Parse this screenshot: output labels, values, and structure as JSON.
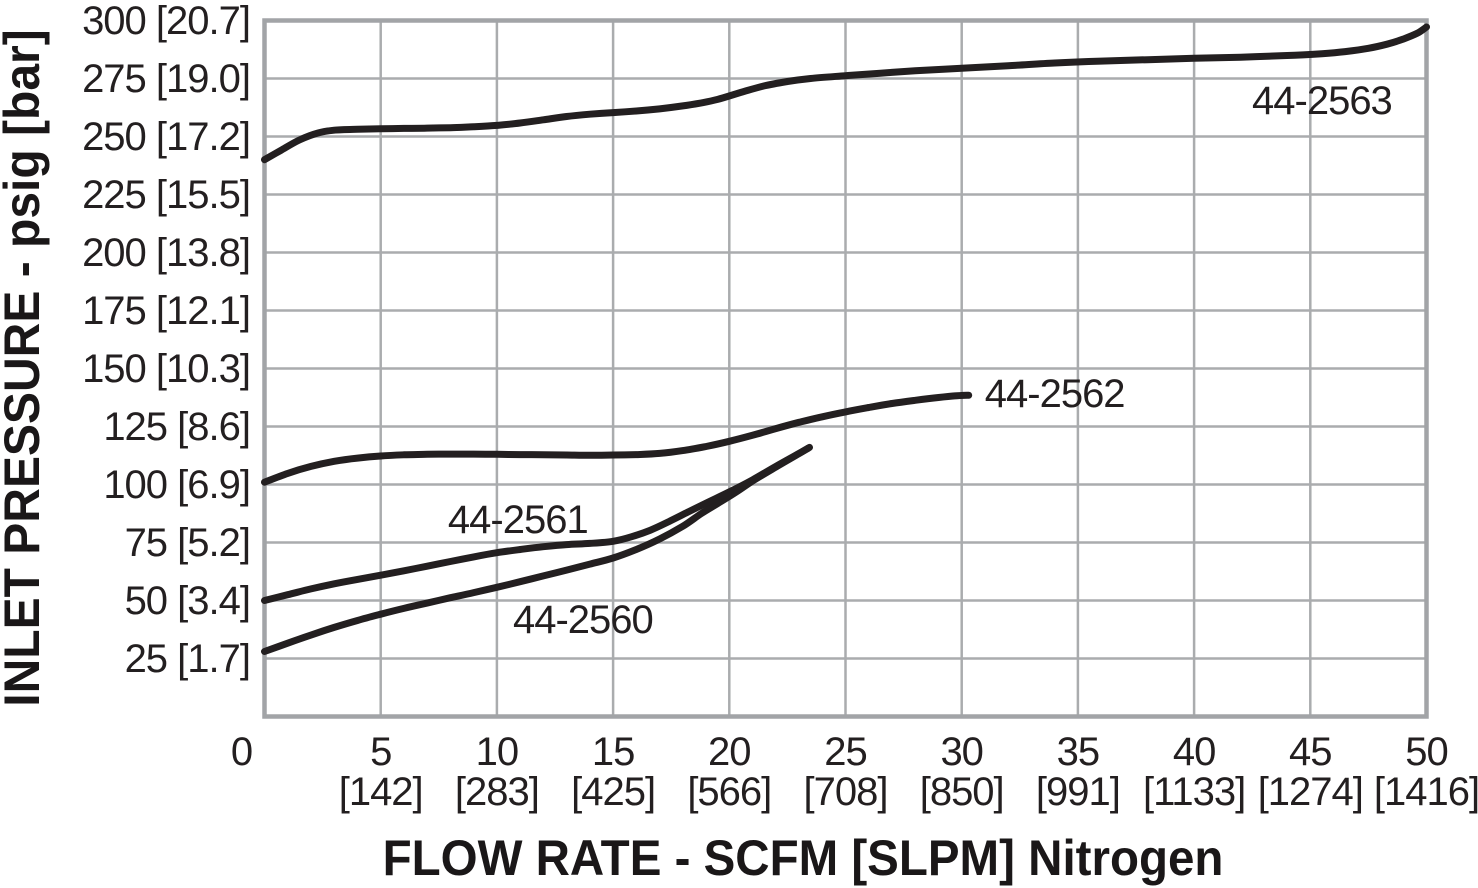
{
  "chart_data": {
    "type": "line",
    "title": "",
    "xlabel": "FLOW RATE - SCFM [SLPM] Nitrogen",
    "ylabel": "INLET PRESSURE - psig [bar]",
    "xlim": [
      0,
      50
    ],
    "ylim": [
      0,
      300
    ],
    "grid": true,
    "legend_position": "inline-labels",
    "x_gridline_step": 5,
    "y_gridline_step": 25,
    "x_ticks": [
      {
        "scfm": "0",
        "slpm": "",
        "value": 0,
        "dx": -23
      },
      {
        "scfm": "5",
        "slpm": "[142]",
        "value": 5,
        "dx": 0
      },
      {
        "scfm": "10",
        "slpm": "[283]",
        "value": 10,
        "dx": 0
      },
      {
        "scfm": "15",
        "slpm": "[425]",
        "value": 15,
        "dx": 0
      },
      {
        "scfm": "20",
        "slpm": "[566]",
        "value": 20,
        "dx": 0
      },
      {
        "scfm": "25",
        "slpm": "[708]",
        "value": 25,
        "dx": 0
      },
      {
        "scfm": "30",
        "slpm": "[850]",
        "value": 30,
        "dx": 0
      },
      {
        "scfm": "35",
        "slpm": "[991]",
        "value": 35,
        "dx": 0
      },
      {
        "scfm": "40",
        "slpm": "[1133]",
        "value": 40,
        "dx": 0
      },
      {
        "scfm": "45",
        "slpm": "[1274]",
        "value": 45,
        "dx": 0
      },
      {
        "scfm": "50",
        "slpm": "[1416]",
        "value": 50,
        "dx": 0
      }
    ],
    "y_ticks": [
      {
        "label": "25 [1.7]",
        "value": 25
      },
      {
        "label": "50 [3.4]",
        "value": 50
      },
      {
        "label": "75 [5.2]",
        "value": 75
      },
      {
        "label": "100 [6.9]",
        "value": 100
      },
      {
        "label": "125 [8.6]",
        "value": 125
      },
      {
        "label": "150 [10.3]",
        "value": 150
      },
      {
        "label": "175 [12.1]",
        "value": 175
      },
      {
        "label": "200 [13.8]",
        "value": 200
      },
      {
        "label": "225 [15.5]",
        "value": 225
      },
      {
        "label": "250 [17.2]",
        "value": 250
      },
      {
        "label": "275 [19.0]",
        "value": 275
      },
      {
        "label": "300 [20.7]",
        "value": 300
      }
    ],
    "series": [
      {
        "name": "44-2560",
        "label_pos": {
          "x": 13.7,
          "y": 41.5
        },
        "points": [
          [
            0,
            28
          ],
          [
            1,
            31.6
          ],
          [
            2,
            35.1
          ],
          [
            3,
            38.4
          ],
          [
            4,
            41.4
          ],
          [
            5,
            44.1
          ],
          [
            6,
            46.6
          ],
          [
            7,
            48.9
          ],
          [
            8,
            51.2
          ],
          [
            9,
            53.4
          ],
          [
            10,
            55.7
          ],
          [
            11,
            58.1
          ],
          [
            12,
            60.6
          ],
          [
            13,
            63.1
          ],
          [
            14,
            65.7
          ],
          [
            15,
            68.3
          ],
          [
            16,
            72
          ],
          [
            17,
            76.5
          ],
          [
            18,
            82
          ],
          [
            18.8,
            87.5
          ],
          [
            19.5,
            91.8
          ],
          [
            20.3,
            96.8
          ],
          [
            21,
            101.5
          ],
          [
            22,
            107.5
          ],
          [
            23,
            113.3
          ],
          [
            23.45,
            116
          ]
        ]
      },
      {
        "name": "44-2561",
        "label_pos": {
          "x": 10.9,
          "y": 84.6
        },
        "points": [
          [
            0,
            50
          ],
          [
            1,
            52.5
          ],
          [
            2,
            55
          ],
          [
            3,
            57.2
          ],
          [
            4,
            59.1
          ],
          [
            5,
            60.9
          ],
          [
            6,
            62.8
          ],
          [
            7,
            64.8
          ],
          [
            8,
            66.8
          ],
          [
            9,
            68.8
          ],
          [
            10,
            70.6
          ],
          [
            11,
            72
          ],
          [
            12,
            73.2
          ],
          [
            13,
            74.1
          ],
          [
            14,
            74.6
          ],
          [
            15,
            75.5
          ],
          [
            15.8,
            77.5
          ],
          [
            16.6,
            80.3
          ],
          [
            17.4,
            84
          ],
          [
            18.2,
            88
          ],
          [
            19,
            92
          ],
          [
            20,
            96.8
          ],
          [
            21,
            102
          ],
          [
            22,
            107.8
          ],
          [
            23,
            113.4
          ],
          [
            23.4,
            115.7
          ]
        ]
      },
      {
        "name": "44-2562",
        "label_pos": {
          "x": 34.0,
          "y": 138.8
        },
        "points": [
          [
            0,
            101
          ],
          [
            1,
            104.8
          ],
          [
            2,
            107.8
          ],
          [
            3,
            110
          ],
          [
            4,
            111.4
          ],
          [
            5,
            112.3
          ],
          [
            6,
            112.8
          ],
          [
            7,
            113
          ],
          [
            8,
            113.1
          ],
          [
            9,
            113.1
          ],
          [
            10,
            113
          ],
          [
            11,
            112.9
          ],
          [
            12,
            112.8
          ],
          [
            13,
            112.7
          ],
          [
            14,
            112.6
          ],
          [
            15,
            112.7
          ],
          [
            16,
            112.9
          ],
          [
            17,
            113.4
          ],
          [
            18,
            114.6
          ],
          [
            19,
            116.4
          ],
          [
            20,
            118.6
          ],
          [
            21,
            121.2
          ],
          [
            22,
            124.1
          ],
          [
            23,
            126.8
          ],
          [
            24,
            129.2
          ],
          [
            25,
            131.3
          ],
          [
            26,
            133.2
          ],
          [
            27,
            134.9
          ],
          [
            28,
            136.3
          ],
          [
            29,
            137.5
          ],
          [
            29.7,
            138.2
          ],
          [
            30.3,
            138.5
          ]
        ]
      },
      {
        "name": "44-2563",
        "label_pos": {
          "x": 45.5,
          "y": 265.5
        },
        "points": [
          [
            0,
            240
          ],
          [
            0.7,
            244
          ],
          [
            1.5,
            248.5
          ],
          [
            2.3,
            251.5
          ],
          [
            3,
            252.7
          ],
          [
            4,
            253.1
          ],
          [
            5,
            253.3
          ],
          [
            6,
            253.5
          ],
          [
            7,
            253.6
          ],
          [
            8,
            253.8
          ],
          [
            9,
            254.2
          ],
          [
            10,
            254.8
          ],
          [
            11,
            255.8
          ],
          [
            12,
            257.2
          ],
          [
            13,
            258.6
          ],
          [
            14,
            259.6
          ],
          [
            15,
            260.3
          ],
          [
            16,
            261
          ],
          [
            17,
            261.9
          ],
          [
            18,
            263.2
          ],
          [
            18.8,
            264.5
          ],
          [
            19.5,
            266
          ],
          [
            20.5,
            269
          ],
          [
            21.5,
            271.8
          ],
          [
            22.5,
            273.7
          ],
          [
            23.5,
            275
          ],
          [
            25,
            276.2
          ],
          [
            26.5,
            277.3
          ],
          [
            28,
            278.3
          ],
          [
            30,
            279.4
          ],
          [
            32,
            280.5
          ],
          [
            34,
            281.7
          ],
          [
            36,
            282.5
          ],
          [
            38,
            283.1
          ],
          [
            40,
            283.7
          ],
          [
            42,
            284.2
          ],
          [
            44,
            284.9
          ],
          [
            45.5,
            285.7
          ],
          [
            46.5,
            286.6
          ],
          [
            47.5,
            288
          ],
          [
            48.3,
            289.8
          ],
          [
            49,
            292
          ],
          [
            49.6,
            294.5
          ],
          [
            50,
            297.2
          ]
        ]
      }
    ],
    "colors": {
      "curve": "#231f20",
      "grid": "#aaacae",
      "border": "#a2a4a7",
      "text": "#231f20",
      "background": "#ffffff"
    }
  }
}
